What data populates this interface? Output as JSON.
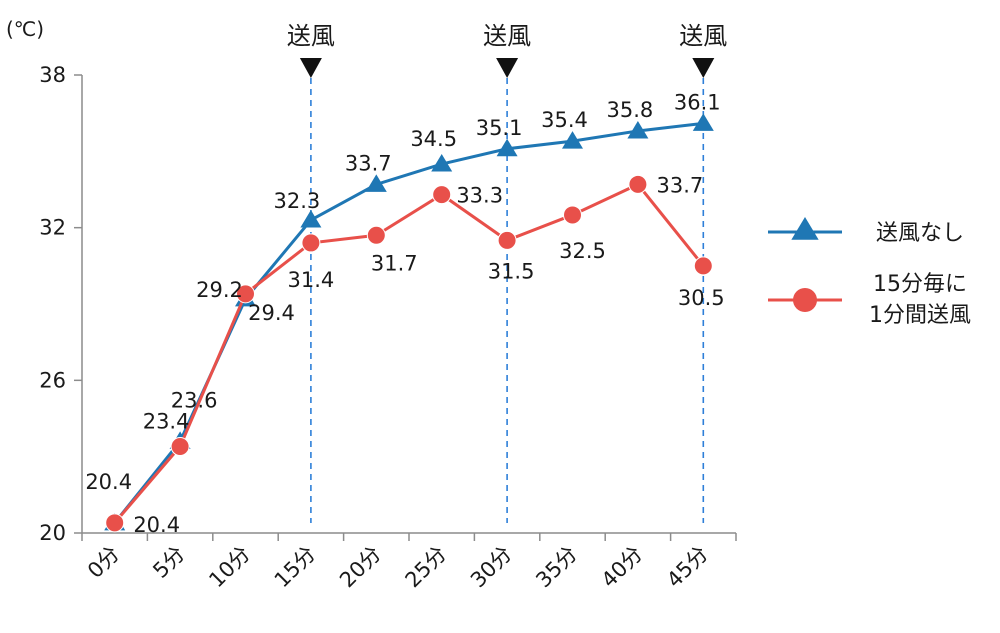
{
  "chart_data": {
    "type": "line",
    "unit_label": "(℃)",
    "categories": [
      "0分",
      "5分",
      "10分",
      "15分",
      "20分",
      "25分",
      "30分",
      "35分",
      "40分",
      "45分"
    ],
    "ylim": [
      20,
      38
    ],
    "yticks": [
      "20",
      "26",
      "32",
      "38"
    ],
    "ytick_values": [
      20,
      26,
      32,
      38
    ],
    "grid": false,
    "legend_position": "right",
    "series": [
      {
        "name": "送風なし",
        "color": "#1f77b4",
        "marker": "triangle",
        "values": [
          20.4,
          23.6,
          29.2,
          32.3,
          33.7,
          34.5,
          35.1,
          35.4,
          35.8,
          36.1
        ],
        "labels": [
          "20.4",
          "23.6",
          "29.2",
          "32.3",
          "33.7",
          "34.5",
          "35.1",
          "35.4",
          "35.8",
          "36.1"
        ]
      },
      {
        "name": "15分毎に\n1分間送風",
        "color": "#e8504a",
        "marker": "circle",
        "values": [
          20.4,
          23.4,
          29.4,
          31.4,
          31.7,
          33.3,
          31.5,
          32.5,
          33.7,
          30.5
        ],
        "labels": [
          "20.4",
          "23.4",
          "29.4",
          "31.4",
          "31.7",
          "33.3",
          "31.5",
          "32.5",
          "33.7",
          "30.5"
        ]
      }
    ],
    "annotations": [
      {
        "label": "送風",
        "x_position": 3.5
      },
      {
        "label": "送風",
        "x_position": 6.5
      },
      {
        "label": "送風",
        "x_position": 9.5
      }
    ],
    "annotation_line_color": "#2e7fd8",
    "axis_color": "#8c8c8c"
  }
}
